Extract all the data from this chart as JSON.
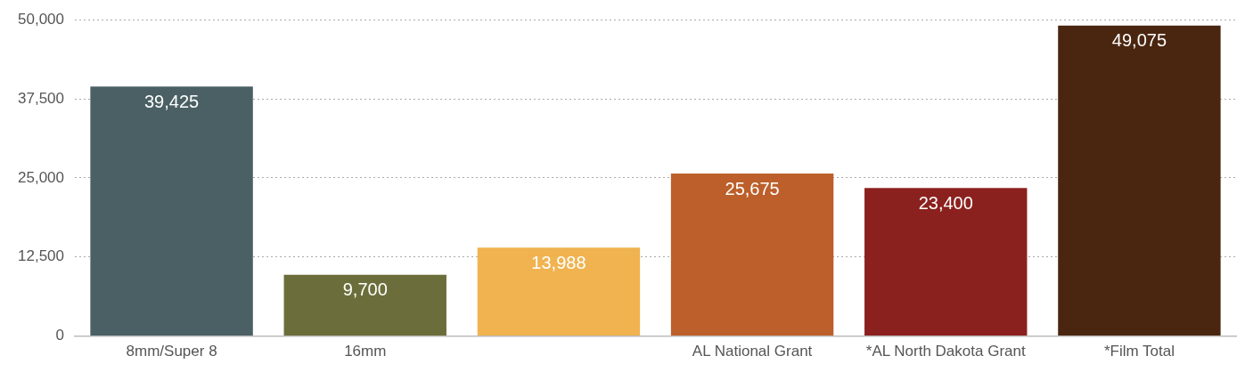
{
  "chart_data": {
    "type": "bar",
    "categories": [
      "8mm/Super 8",
      "16mm",
      null,
      "AL National Grant",
      "*AL North Dakota Grant",
      "*Film Total"
    ],
    "values": [
      39425,
      9700,
      13988,
      25675,
      23400,
      49075
    ],
    "colors": [
      "#4a6064",
      "#6b6e3a",
      "#f0b350",
      "#bc5f2a",
      "#8b211e",
      "#4a2610"
    ],
    "ylim": [
      0,
      50000
    ],
    "yticks": [
      0,
      {
        "value": 12500,
        "label": "12,500"
      },
      {
        "value": 25000,
        "label": "25,000"
      },
      {
        "value": 37500,
        "label": "37,500"
      },
      {
        "value": 50000,
        "label": "50,000"
      }
    ],
    "value_labels": [
      "39,425",
      "9,700",
      "13,988",
      "25,675",
      "23,400",
      "49,075"
    ],
    "grid": "y",
    "legend": false
  }
}
